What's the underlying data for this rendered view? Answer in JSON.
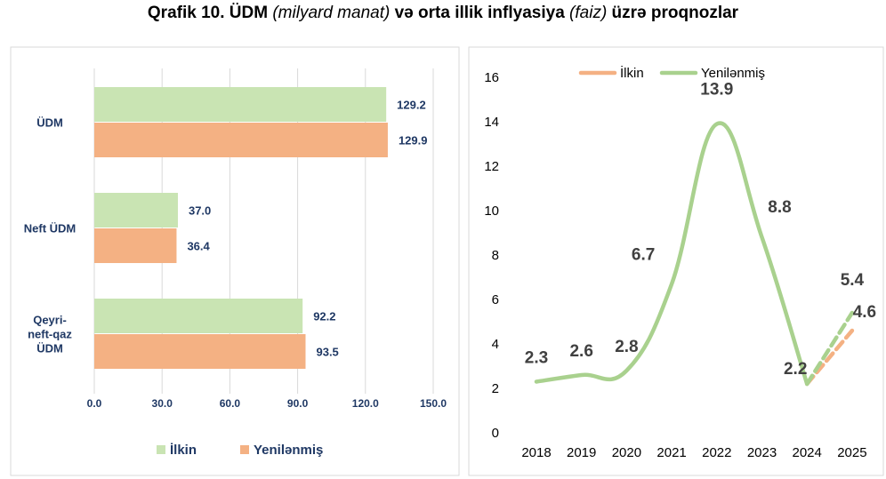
{
  "title": {
    "part1": "Qrafik 10. ÜDM ",
    "part2": "(milyard manat)",
    "part3": " və orta illik inflyasiya ",
    "part4": "(faiz)",
    "part5": " üzrə proqnozlar"
  },
  "colors": {
    "ilkin": "#c9e4b3",
    "yenilenmis": "#f4b183",
    "line_green": "#a9d18e",
    "line_orange": "#f4b183",
    "value_blue": "#1f3864"
  },
  "chart_data": [
    {
      "type": "bar",
      "orientation": "horizontal",
      "categories": [
        "ÜDM",
        "Neft ÜDM",
        "Qeyri-neft-qaz ÜDM"
      ],
      "category_lines": [
        [
          "ÜDM"
        ],
        [
          "Neft ÜDM"
        ],
        [
          "Qeyri-",
          "neft-qaz",
          "ÜDM"
        ]
      ],
      "series": [
        {
          "name": "İlkin",
          "values": [
            129.2,
            37.0,
            92.2
          ]
        },
        {
          "name": "Yenilənmiş",
          "values": [
            129.9,
            36.4,
            93.5
          ]
        }
      ],
      "value_labels": [
        [
          "129.2",
          "37.0",
          "92.2"
        ],
        [
          "129.9",
          "36.4",
          "93.5"
        ]
      ],
      "xlim": [
        0,
        150
      ],
      "xticks": [
        "0.0",
        "30.0",
        "60.0",
        "90.0",
        "120.0",
        "150.0"
      ],
      "grid": true,
      "legend": "bottom"
    },
    {
      "type": "line",
      "x": [
        "2018",
        "2019",
        "2020",
        "2021",
        "2022",
        "2023",
        "2024",
        "2025"
      ],
      "series": [
        {
          "name": "İlkin",
          "x": [
            "2024",
            "2025"
          ],
          "values": [
            2.2,
            4.6
          ],
          "style": "dashed"
        },
        {
          "name": "Yenilənmiş",
          "x": [
            "2018",
            "2019",
            "2020",
            "2021",
            "2022",
            "2023",
            "2024"
          ],
          "values": [
            2.3,
            2.6,
            2.8,
            6.7,
            13.9,
            8.8,
            2.2
          ],
          "forecast_x": [
            "2024",
            "2025"
          ],
          "forecast_values": [
            2.2,
            5.4
          ]
        }
      ],
      "data_labels": [
        {
          "x": "2018",
          "text": "2.3"
        },
        {
          "x": "2019",
          "text": "2.6"
        },
        {
          "x": "2020",
          "text": "2.8"
        },
        {
          "x": "2021",
          "text": "6.7"
        },
        {
          "x": "2022",
          "text": "13.9"
        },
        {
          "x": "2023",
          "text": "8.8"
        },
        {
          "x": "2024",
          "text": "2.2"
        },
        {
          "x": "2025",
          "text": "5.4"
        },
        {
          "x": "2025",
          "text": "4.6"
        }
      ],
      "ylim": [
        0,
        16
      ],
      "yticks": [
        "0",
        "2",
        "4",
        "6",
        "8",
        "10",
        "12",
        "14",
        "16"
      ],
      "grid": false,
      "legend": "top"
    }
  ]
}
